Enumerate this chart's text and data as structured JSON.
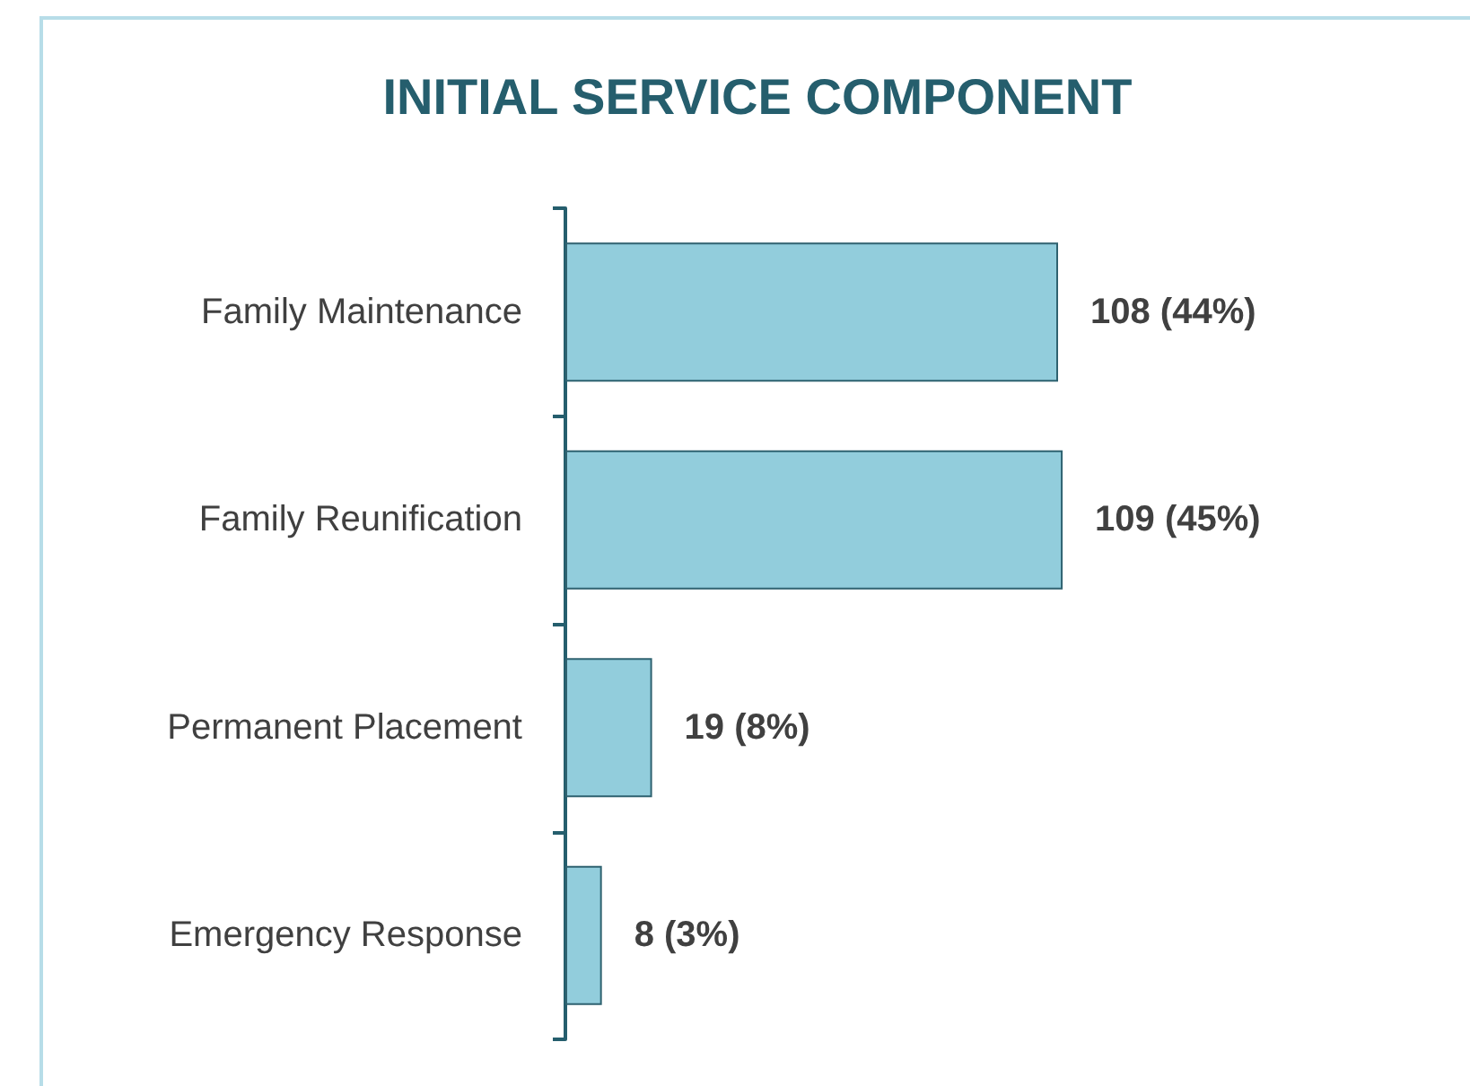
{
  "chart_data": {
    "type": "bar",
    "orientation": "horizontal",
    "title": "INITIAL SERVICE COMPONENT",
    "categories": [
      "Family Maintenance",
      "Family Reunification",
      "Permanent Placement",
      "Emergency Response"
    ],
    "values": [
      108,
      109,
      19,
      8
    ],
    "value_labels": [
      "108 (44%)",
      "109 (45%)",
      "19 (8%)",
      "8 (3%)"
    ],
    "color": "#92cddc"
  }
}
